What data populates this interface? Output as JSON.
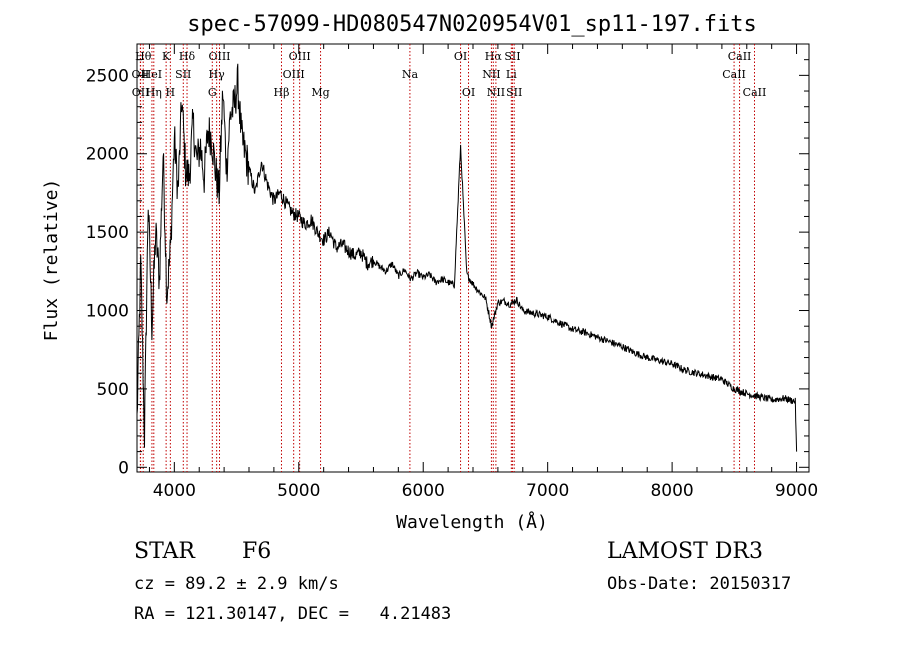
{
  "chart_data": {
    "type": "line",
    "title": "spec-57099-HD080547N020954V01_sp11-197.fits",
    "xlabel": "Wavelength (Å)",
    "ylabel": "Flux (relative)",
    "xlim": [
      3700,
      9100
    ],
    "ylim": [
      -30,
      2700
    ],
    "x_ticks": [
      4000,
      5000,
      6000,
      7000,
      8000,
      9000
    ],
    "x_tick_labels": [
      "4000",
      "5000",
      "6000",
      "7000",
      "8000",
      "9000"
    ],
    "y_ticks": [
      0,
      500,
      1000,
      1500,
      2000,
      2500
    ],
    "y_tick_labels": [
      "0",
      "500",
      "1000",
      "1500",
      "2000",
      "2500"
    ],
    "grid": false,
    "series": [
      {
        "name": "spectrum",
        "x": [
          3700,
          3730,
          3760,
          3790,
          3820,
          3850,
          3880,
          3910,
          3940,
          3970,
          4000,
          4030,
          4060,
          4090,
          4120,
          4150,
          4180,
          4210,
          4240,
          4270,
          4300,
          4330,
          4360,
          4390,
          4420,
          4450,
          4480,
          4510,
          4540,
          4570,
          4600,
          4650,
          4700,
          4750,
          4800,
          4850,
          4900,
          4950,
          5000,
          5050,
          5100,
          5150,
          5200,
          5250,
          5300,
          5350,
          5400,
          5450,
          5500,
          5550,
          5600,
          5650,
          5700,
          5750,
          5800,
          5850,
          5900,
          5950,
          6000,
          6050,
          6100,
          6150,
          6200,
          6250,
          6300,
          6350,
          6400,
          6450,
          6500,
          6550,
          6600,
          6650,
          6700,
          6750,
          6800,
          6850,
          6900,
          6950,
          7000,
          7100,
          7200,
          7300,
          7400,
          7500,
          7600,
          7700,
          7800,
          7900,
          8000,
          8100,
          8200,
          8300,
          8400,
          8500,
          8600,
          8700,
          8800,
          8900,
          8990,
          9000
        ],
        "y": [
          300,
          1300,
          200,
          1700,
          900,
          1500,
          1200,
          2000,
          1100,
          1400,
          2100,
          1750,
          2350,
          1900,
          1850,
          2200,
          1950,
          2050,
          1850,
          2150,
          2100,
          1900,
          1750,
          2400,
          1900,
          2250,
          2300,
          2450,
          2100,
          2000,
          1900,
          1750,
          1950,
          1800,
          1700,
          1750,
          1680,
          1620,
          1600,
          1550,
          1580,
          1500,
          1450,
          1500,
          1400,
          1420,
          1380,
          1350,
          1370,
          1300,
          1320,
          1280,
          1250,
          1300,
          1220,
          1260,
          1200,
          1240,
          1210,
          1230,
          1180,
          1200,
          1180,
          1160,
          2050,
          1230,
          1170,
          1120,
          1080,
          900,
          1050,
          1060,
          1040,
          1070,
          1000,
          990,
          980,
          970,
          960,
          920,
          880,
          860,
          830,
          800,
          770,
          730,
          700,
          680,
          660,
          620,
          600,
          580,
          560,
          500,
          470,
          450,
          430,
          440,
          420,
          100
        ]
      }
    ],
    "line_markers": [
      {
        "label": "Hθ",
        "x": 3750,
        "row": 0
      },
      {
        "label": "OII",
        "x": 3727,
        "row": 1
      },
      {
        "label": "OII",
        "x": 3729,
        "row": 2
      },
      {
        "label": "HeI",
        "x": 3820,
        "row": 1
      },
      {
        "label": "Hη",
        "x": 3835,
        "row": 2
      },
      {
        "label": "K",
        "x": 3934,
        "row": 0
      },
      {
        "label": "H",
        "x": 3968,
        "row": 2
      },
      {
        "label": "Hδ",
        "x": 4102,
        "row": 0
      },
      {
        "label": "SII",
        "x": 4072,
        "row": 1
      },
      {
        "label": "OIII",
        "x": 4363,
        "row": 0
      },
      {
        "label": "Hγ",
        "x": 4340,
        "row": 1
      },
      {
        "label": "G",
        "x": 4305,
        "row": 2
      },
      {
        "label": "Hβ",
        "x": 4861,
        "row": 2
      },
      {
        "label": "OIII",
        "x": 5007,
        "row": 0
      },
      {
        "label": "OIII",
        "x": 4959,
        "row": 1
      },
      {
        "label": "Mg",
        "x": 5175,
        "row": 2
      },
      {
        "label": "Na",
        "x": 5893,
        "row": 1
      },
      {
        "label": "OI",
        "x": 6300,
        "row": 0
      },
      {
        "label": "OI",
        "x": 6364,
        "row": 2
      },
      {
        "label": "Hα",
        "x": 6563,
        "row": 0
      },
      {
        "label": "NII",
        "x": 6548,
        "row": 1
      },
      {
        "label": "NII",
        "x": 6584,
        "row": 2
      },
      {
        "label": "SII",
        "x": 6717,
        "row": 0
      },
      {
        "label": "Li",
        "x": 6708,
        "row": 1
      },
      {
        "label": "SII",
        "x": 6731,
        "row": 2
      },
      {
        "label": "CaII",
        "x": 8542,
        "row": 0
      },
      {
        "label": "CaII",
        "x": 8498,
        "row": 1
      },
      {
        "label": "CaII",
        "x": 8662,
        "row": 2
      }
    ]
  },
  "info": {
    "object_class": "STAR",
    "subclass": "F6",
    "survey": "LAMOST DR3",
    "redshift": "cz = 89.2 ± 2.9 km/s",
    "obs_date": "Obs-Date: 20150317",
    "coords": "RA = 121.30147, DEC =   4.21483"
  }
}
